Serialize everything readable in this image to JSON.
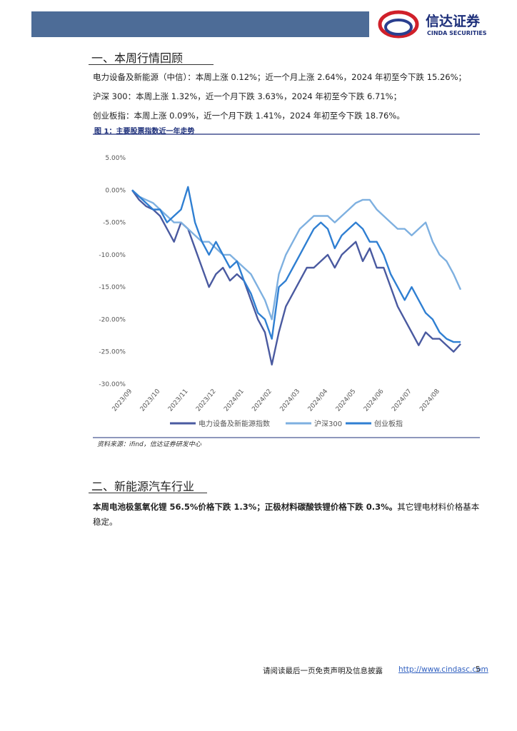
{
  "header": {
    "logo_cn": "信达证券",
    "logo_en": "CINDA SECURITIES"
  },
  "section1": {
    "title": "一、本周行情回顾",
    "paragraphs": [
      "电力设备及新能源（中信）：本周上涨 0.12%；近一个月上涨 2.64%，2024 年初至今下跌 15.26%；",
      "沪深 300：本周上涨 1.32%，近一个月下跌 3.63%，2024 年初至今下跌 6.71%；",
      "创业板指：本周上涨 0.09%，近一个月下跌 1.41%，2024 年初至今下跌 18.76%。"
    ],
    "figure_caption": "图 1：主要股票指数近一年走势",
    "source": "资料来源：ifind，信达证券研发中心"
  },
  "chart_data": {
    "type": "line",
    "categories": [
      "2023/09",
      null,
      null,
      null,
      "2023/10",
      null,
      null,
      null,
      "2023/11",
      null,
      null,
      null,
      "2023/12",
      null,
      null,
      null,
      "2024/01",
      null,
      null,
      null,
      "2024/02",
      null,
      null,
      null,
      "2024/03",
      null,
      null,
      null,
      "2024/04",
      null,
      null,
      null,
      "2024/05",
      null,
      null,
      null,
      "2024/06",
      null,
      null,
      null,
      "2024/07",
      null,
      null,
      null,
      "2024/08",
      null,
      null,
      null
    ],
    "series": [
      {
        "name": "电力设备及新能源指数",
        "color": "#4a5aa0",
        "values": [
          0,
          -1.5,
          -2.5,
          -3,
          -4,
          -6,
          -8,
          -5,
          -6,
          -9,
          -12,
          -15,
          -13,
          -12,
          -14,
          -13,
          -14,
          -17,
          -20,
          -22,
          -27,
          -22,
          -18,
          -16,
          -14,
          -12,
          -12,
          -11,
          -10,
          -12,
          -10,
          -9,
          -8,
          -11,
          -9,
          -12,
          -12,
          -15,
          -18,
          -20,
          -22,
          -24,
          -22,
          -23,
          -23,
          -24,
          -25,
          -23.8
        ]
      },
      {
        "name": "沪深300",
        "color": "#7eb0e0",
        "values": [
          0,
          -1,
          -1.5,
          -2,
          -3,
          -4,
          -5,
          -5,
          -6,
          -7,
          -8,
          -8,
          -9,
          -10,
          -10,
          -11,
          -12,
          -13,
          -15,
          -17,
          -20,
          -13,
          -10,
          -8,
          -6,
          -5,
          -4,
          -4,
          -4,
          -5,
          -4,
          -3,
          -2,
          -1.5,
          -1.5,
          -3,
          -4,
          -5,
          -6,
          -6,
          -7,
          -6,
          -5,
          -8,
          -10,
          -11,
          -13,
          -15.4
        ]
      },
      {
        "name": "创业板指",
        "color": "#2f7fd2",
        "values": [
          0,
          -1,
          -2,
          -3,
          -3,
          -5,
          -4,
          -3,
          0.5,
          -5,
          -8,
          -10,
          -8,
          -10,
          -12,
          -11,
          -14,
          -16,
          -19,
          -20,
          -23,
          -15,
          -14,
          -12,
          -10,
          -8,
          -6,
          -5,
          -6,
          -9,
          -7,
          -6,
          -5,
          -6,
          -8,
          -8,
          -10,
          -13,
          -15,
          -17,
          -15,
          -17,
          -19,
          -20,
          -22,
          -23,
          -23.5,
          -23.5
        ]
      }
    ],
    "ylim": [
      -30,
      5
    ],
    "yticks": [
      {
        "value": 5,
        "label": "5.00%"
      },
      {
        "value": 0,
        "label": "0.00%"
      },
      {
        "value": -5,
        "label": "-5.00%"
      },
      {
        "value": -10,
        "label": "-10.00%"
      },
      {
        "value": -15,
        "label": "-15.00%"
      },
      {
        "value": -20,
        "label": "-20.00%"
      },
      {
        "value": -25,
        "label": "-25.00%"
      },
      {
        "value": -30,
        "label": "-30.00%"
      }
    ],
    "grid": false
  },
  "section2": {
    "title": "二、新能源汽车行业",
    "paragraph_bold": "本周电池极氢氧化锂 56.5%价格下跌 1.3%；正极材料碳酸铁锂价格下跌 0.3%。",
    "paragraph_rest": "其它锂电材料价格基本稳定。"
  },
  "footer": {
    "disclaimer": "请阅读最后一页免责声明及信息披露",
    "link": "http://www.cindasc.com",
    "page": "5"
  }
}
